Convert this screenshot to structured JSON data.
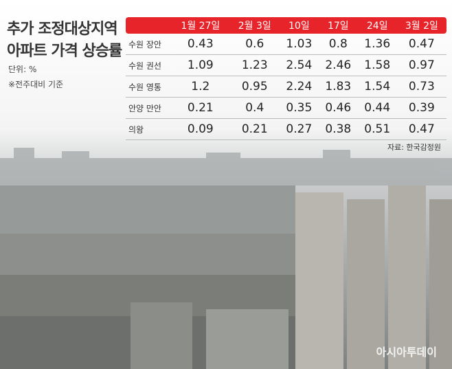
{
  "header": {
    "title_lines": [
      "추가 조정대상지역",
      "아파트 가격 상승률"
    ],
    "unit": "단위: %",
    "note": "※전주대비 기준"
  },
  "table": {
    "columns": [
      "1월 27일",
      "2월 3일",
      "10일",
      "17일",
      "24일",
      "3월 2일"
    ],
    "rows": [
      {
        "label": "수원 장안",
        "cells": [
          "0.43",
          "0.6",
          "1.03",
          "0.8",
          "1.36",
          "0.47"
        ]
      },
      {
        "label": "수원 권선",
        "cells": [
          "1.09",
          "1.23",
          "2.54",
          "2.46",
          "1.58",
          "0.97"
        ]
      },
      {
        "label": "수원 영통",
        "cells": [
          "1.2",
          "0.95",
          "2.24",
          "1.83",
          "1.54",
          "0.73"
        ]
      },
      {
        "label": "안양 만안",
        "cells": [
          "0.21",
          "0.4",
          "0.35",
          "0.46",
          "0.44",
          "0.39"
        ]
      },
      {
        "label": "의왕",
        "cells": [
          "0.09",
          "0.21",
          "0.27",
          "0.38",
          "0.51",
          "0.47"
        ]
      }
    ]
  },
  "source": "자료: 한국감정원",
  "watermark": "아시아투데이"
}
